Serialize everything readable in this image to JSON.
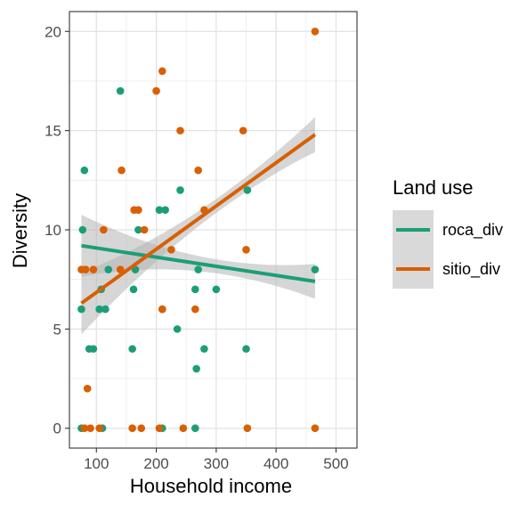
{
  "chart_data": {
    "type": "scatter",
    "title": "",
    "xlabel": "Household income",
    "ylabel": "Diversity",
    "xlim": [
      55,
      535
    ],
    "ylim": [
      -1,
      21
    ],
    "xticks": [
      100,
      200,
      300,
      400,
      500
    ],
    "yticks": [
      0,
      5,
      10,
      15,
      20
    ],
    "grid": true,
    "legend": {
      "title": "Land use",
      "position": "right",
      "entries": [
        "roca_div",
        "sitio_div"
      ]
    },
    "series": [
      {
        "name": "roca_div",
        "color": "#1b9e77",
        "points": [
          [
            75,
            6
          ],
          [
            77,
            10
          ],
          [
            80,
            13
          ],
          [
            88,
            4
          ],
          [
            95,
            4
          ],
          [
            105,
            6
          ],
          [
            108,
            7
          ],
          [
            115,
            6
          ],
          [
            120,
            8
          ],
          [
            140,
            17
          ],
          [
            160,
            4
          ],
          [
            162,
            7
          ],
          [
            165,
            8
          ],
          [
            170,
            10
          ],
          [
            205,
            11
          ],
          [
            210,
            6
          ],
          [
            215,
            11
          ],
          [
            235,
            5
          ],
          [
            240,
            12
          ],
          [
            265,
            7
          ],
          [
            267,
            3
          ],
          [
            270,
            8
          ],
          [
            280,
            4
          ],
          [
            300,
            7
          ],
          [
            350,
            4
          ],
          [
            352,
            12
          ],
          [
            465,
            8
          ],
          [
            75,
            0
          ],
          [
            110,
            0
          ],
          [
            210,
            0
          ],
          [
            265,
            0
          ]
        ],
        "trend": {
          "x": [
            75,
            465
          ],
          "y": [
            9.2,
            7.4
          ]
        }
      },
      {
        "name": "sitio_div",
        "color": "#d95f02",
        "points": [
          [
            75,
            8
          ],
          [
            80,
            0
          ],
          [
            82,
            8
          ],
          [
            85,
            2
          ],
          [
            90,
            0
          ],
          [
            95,
            8
          ],
          [
            105,
            0
          ],
          [
            112,
            10
          ],
          [
            140,
            8
          ],
          [
            142,
            13
          ],
          [
            160,
            0
          ],
          [
            163,
            11
          ],
          [
            170,
            11
          ],
          [
            175,
            0
          ],
          [
            180,
            10
          ],
          [
            200,
            17
          ],
          [
            205,
            0
          ],
          [
            210,
            18
          ],
          [
            210,
            6
          ],
          [
            225,
            9
          ],
          [
            240,
            15
          ],
          [
            245,
            0
          ],
          [
            265,
            6
          ],
          [
            270,
            13
          ],
          [
            280,
            11
          ],
          [
            345,
            15
          ],
          [
            350,
            9
          ],
          [
            352,
            0
          ],
          [
            465,
            20
          ],
          [
            465,
            0
          ]
        ],
        "trend": {
          "x": [
            75,
            465
          ],
          "y": [
            6.3,
            14.8
          ]
        }
      }
    ]
  }
}
